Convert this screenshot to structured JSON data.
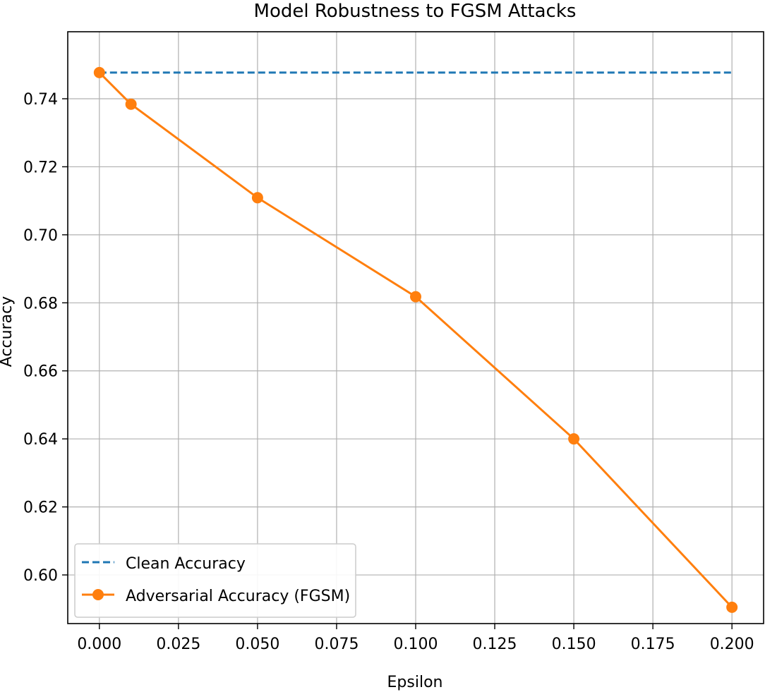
{
  "chart_data": {
    "type": "line",
    "title": "Model Robustness to FGSM Attacks",
    "xlabel": "Epsilon",
    "ylabel": "Accuracy",
    "xlim": [
      -0.01,
      0.21
    ],
    "ylim": [
      0.5857,
      0.7597
    ],
    "x_ticks": [
      0.0,
      0.025,
      0.05,
      0.075,
      0.1,
      0.125,
      0.15,
      0.175,
      0.2
    ],
    "x_tick_labels": [
      "0.000",
      "0.025",
      "0.050",
      "0.075",
      "0.100",
      "0.125",
      "0.150",
      "0.175",
      "0.200"
    ],
    "y_ticks": [
      0.6,
      0.62,
      0.64,
      0.66,
      0.68,
      0.7,
      0.72,
      0.74
    ],
    "y_tick_labels": [
      "0.60",
      "0.62",
      "0.64",
      "0.66",
      "0.68",
      "0.70",
      "0.72",
      "0.74"
    ],
    "grid": true,
    "legend_position": "lower-left",
    "series": [
      {
        "name": "Clean Accuracy",
        "style": "dashed",
        "color": "#1f77b4",
        "x": [
          0.0,
          0.2
        ],
        "y": [
          0.7477,
          0.7477
        ]
      },
      {
        "name": "Adversarial Accuracy (FGSM)",
        "style": "solid",
        "marker": "circle",
        "color": "#ff7f0e",
        "x": [
          0.0,
          0.01,
          0.05,
          0.1,
          0.15,
          0.2
        ],
        "y": [
          0.7477,
          0.7384,
          0.7109,
          0.6818,
          0.64,
          0.5905
        ]
      }
    ]
  }
}
